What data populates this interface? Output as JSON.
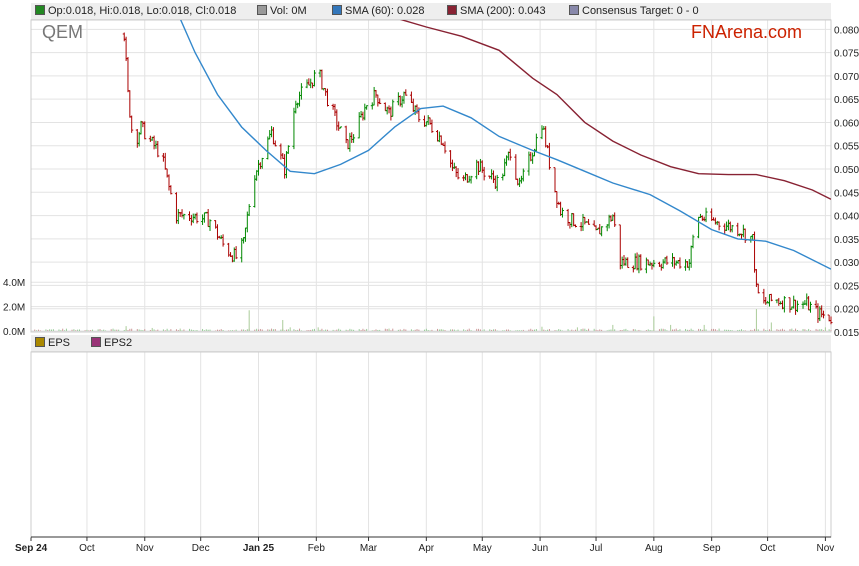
{
  "chart_data": {
    "type": "candlestick",
    "symbol": "QEM",
    "brand": "FNArena.com",
    "ohlc_legend": "Op:0.018, Hi:0.018, Lo:0.018, Cl:0.018",
    "volume_legend": "Vol: 0M",
    "sma60_legend": "SMA (60): 0.028",
    "sma200_legend": "SMA (200): 0.043",
    "consensus_legend": "Consensus Target: 0 - 0",
    "eps_legend": "EPS",
    "eps2_legend": "EPS2",
    "x_tick_labels": [
      "Sep 24",
      "Oct",
      "Nov",
      "Dec",
      "Jan 25",
      "Feb",
      "Mar",
      "Apr",
      "May",
      "Jun",
      "Jul",
      "Aug",
      "Sep",
      "Oct",
      "Nov"
    ],
    "x_tick_dates": [
      "2024-09-01",
      "2024-10-01",
      "2024-11-01",
      "2024-12-01",
      "2025-01-01",
      "2025-02-01",
      "2025-03-01",
      "2025-04-01",
      "2025-05-01",
      "2025-06-01",
      "2025-07-01",
      "2025-08-01",
      "2025-09-01",
      "2025-10-01",
      "2025-11-01"
    ],
    "x_range": [
      "2024-09-01",
      "2025-11-04"
    ],
    "price_axis": {
      "ylim": [
        0.015,
        0.082
      ],
      "ticks": [
        "0.080",
        "0.075",
        "0.070",
        "0.065",
        "0.060",
        "0.055",
        "0.050",
        "0.045",
        "0.040",
        "0.035",
        "0.030",
        "0.025",
        "0.020",
        "0.015"
      ]
    },
    "volume_axis": {
      "ylim": [
        0,
        5000000
      ],
      "ticks": [
        "4.0M",
        "2.0M",
        "0.0M"
      ]
    },
    "grid": true,
    "colors": {
      "up": "#008800",
      "down": "#aa0000",
      "sma60": "#3388cc",
      "sma200": "#882233",
      "ohlc_swatch": "#228822",
      "vol_swatch": "#999999",
      "sma60_swatch": "#3377bb",
      "sma200_swatch": "#882233",
      "consensus_swatch": "#8888aa",
      "eps_swatch": "#aa8800",
      "eps2_swatch": "#993377"
    },
    "sma60": [
      {
        "date": "2024-11-17",
        "value": 0.085
      },
      {
        "date": "2024-11-28",
        "value": 0.075
      },
      {
        "date": "2024-12-10",
        "value": 0.066
      },
      {
        "date": "2024-12-23",
        "value": 0.059
      },
      {
        "date": "2025-01-05",
        "value": 0.054
      },
      {
        "date": "2025-01-18",
        "value": 0.0495
      },
      {
        "date": "2025-01-31",
        "value": 0.049
      },
      {
        "date": "2025-02-14",
        "value": 0.051
      },
      {
        "date": "2025-03-01",
        "value": 0.054
      },
      {
        "date": "2025-03-15",
        "value": 0.059
      },
      {
        "date": "2025-03-29",
        "value": 0.063
      },
      {
        "date": "2025-04-10",
        "value": 0.0635
      },
      {
        "date": "2025-04-25",
        "value": 0.061
      },
      {
        "date": "2025-05-10",
        "value": 0.057
      },
      {
        "date": "2025-05-28",
        "value": 0.054
      },
      {
        "date": "2025-06-10",
        "value": 0.052
      },
      {
        "date": "2025-06-25",
        "value": 0.0495
      },
      {
        "date": "2025-07-10",
        "value": 0.047
      },
      {
        "date": "2025-07-30",
        "value": 0.0445
      },
      {
        "date": "2025-08-15",
        "value": 0.041
      },
      {
        "date": "2025-09-01",
        "value": 0.037
      },
      {
        "date": "2025-09-15",
        "value": 0.035
      },
      {
        "date": "2025-09-30",
        "value": 0.0345
      },
      {
        "date": "2025-10-15",
        "value": 0.0325
      },
      {
        "date": "2025-11-04",
        "value": 0.0285
      }
    ],
    "sma200": [
      {
        "date": "2025-03-15",
        "value": 0.0825
      },
      {
        "date": "2025-04-01",
        "value": 0.0805
      },
      {
        "date": "2025-04-20",
        "value": 0.0785
      },
      {
        "date": "2025-05-10",
        "value": 0.0755
      },
      {
        "date": "2025-05-28",
        "value": 0.0695
      },
      {
        "date": "2025-06-10",
        "value": 0.066
      },
      {
        "date": "2025-06-25",
        "value": 0.06
      },
      {
        "date": "2025-07-10",
        "value": 0.056
      },
      {
        "date": "2025-07-25",
        "value": 0.053
      },
      {
        "date": "2025-08-10",
        "value": 0.0505
      },
      {
        "date": "2025-08-25",
        "value": 0.049
      },
      {
        "date": "2025-09-10",
        "value": 0.0488
      },
      {
        "date": "2025-09-25",
        "value": 0.0488
      },
      {
        "date": "2025-10-10",
        "value": 0.0475
      },
      {
        "date": "2025-10-25",
        "value": 0.0455
      },
      {
        "date": "2025-11-04",
        "value": 0.0435
      }
    ],
    "price_waypoints": [
      {
        "date": "2024-10-21",
        "value": 0.079
      },
      {
        "date": "2024-10-23",
        "value": 0.066
      },
      {
        "date": "2024-10-26",
        "value": 0.055
      },
      {
        "date": "2024-10-30",
        "value": 0.059
      },
      {
        "date": "2024-11-04",
        "value": 0.056
      },
      {
        "date": "2024-11-10",
        "value": 0.053
      },
      {
        "date": "2024-11-14",
        "value": 0.046
      },
      {
        "date": "2024-11-18",
        "value": 0.04
      },
      {
        "date": "2024-11-26",
        "value": 0.04
      },
      {
        "date": "2024-12-06",
        "value": 0.039
      },
      {
        "date": "2024-12-14",
        "value": 0.033
      },
      {
        "date": "2024-12-20",
        "value": 0.031
      },
      {
        "date": "2024-12-24",
        "value": 0.034
      },
      {
        "date": "2024-12-29",
        "value": 0.048
      },
      {
        "date": "2025-01-08",
        "value": 0.058
      },
      {
        "date": "2025-01-15",
        "value": 0.05
      },
      {
        "date": "2025-01-21",
        "value": 0.065
      },
      {
        "date": "2025-01-28",
        "value": 0.068
      },
      {
        "date": "2025-02-02",
        "value": 0.071
      },
      {
        "date": "2025-02-06",
        "value": 0.066
      },
      {
        "date": "2025-02-12",
        "value": 0.06
      },
      {
        "date": "2025-02-17",
        "value": 0.055
      },
      {
        "date": "2025-02-22",
        "value": 0.058
      },
      {
        "date": "2025-02-28",
        "value": 0.064
      },
      {
        "date": "2025-03-05",
        "value": 0.066
      },
      {
        "date": "2025-03-12",
        "value": 0.062
      },
      {
        "date": "2025-03-20",
        "value": 0.066
      },
      {
        "date": "2025-03-28",
        "value": 0.061
      },
      {
        "date": "2025-04-02",
        "value": 0.06
      },
      {
        "date": "2025-04-10",
        "value": 0.056
      },
      {
        "date": "2025-04-15",
        "value": 0.05
      },
      {
        "date": "2025-04-20",
        "value": 0.047
      },
      {
        "date": "2025-04-28",
        "value": 0.051
      },
      {
        "date": "2025-05-03",
        "value": 0.049
      },
      {
        "date": "2025-05-10",
        "value": 0.047
      },
      {
        "date": "2025-05-16",
        "value": 0.054
      },
      {
        "date": "2025-05-21",
        "value": 0.046
      },
      {
        "date": "2025-05-28",
        "value": 0.054
      },
      {
        "date": "2025-06-02",
        "value": 0.06
      },
      {
        "date": "2025-06-08",
        "value": 0.047
      },
      {
        "date": "2025-06-12",
        "value": 0.041
      },
      {
        "date": "2025-06-18",
        "value": 0.039
      },
      {
        "date": "2025-06-25",
        "value": 0.038
      },
      {
        "date": "2025-07-01",
        "value": 0.036
      },
      {
        "date": "2025-07-10",
        "value": 0.04
      },
      {
        "date": "2025-07-14",
        "value": 0.03
      },
      {
        "date": "2025-08-20",
        "value": 0.03
      },
      {
        "date": "2025-08-24",
        "value": 0.04
      },
      {
        "date": "2025-08-31",
        "value": 0.039
      },
      {
        "date": "2025-09-08",
        "value": 0.038
      },
      {
        "date": "2025-09-16",
        "value": 0.037
      },
      {
        "date": "2025-09-23",
        "value": 0.035
      },
      {
        "date": "2025-09-25",
        "value": 0.024
      },
      {
        "date": "2025-09-28",
        "value": 0.021
      },
      {
        "date": "2025-10-05",
        "value": 0.022
      },
      {
        "date": "2025-10-15",
        "value": 0.021
      },
      {
        "date": "2025-10-22",
        "value": 0.021
      },
      {
        "date": "2025-10-28",
        "value": 0.019
      },
      {
        "date": "2025-11-04",
        "value": 0.018
      }
    ],
    "volume_spikes": [
      {
        "date": "2024-10-22",
        "value": 400000
      },
      {
        "date": "2024-11-05",
        "value": 250000
      },
      {
        "date": "2024-11-20",
        "value": 200000
      },
      {
        "date": "2024-12-27",
        "value": 1700000
      },
      {
        "date": "2025-01-14",
        "value": 900000
      },
      {
        "date": "2025-01-18",
        "value": 300000
      },
      {
        "date": "2025-02-02",
        "value": 300000
      },
      {
        "date": "2025-03-12",
        "value": 200000
      },
      {
        "date": "2025-04-09",
        "value": 150000
      },
      {
        "date": "2025-06-02",
        "value": 350000
      },
      {
        "date": "2025-06-21",
        "value": 300000
      },
      {
        "date": "2025-07-10",
        "value": 500000
      },
      {
        "date": "2025-08-01",
        "value": 1200000
      },
      {
        "date": "2025-08-10",
        "value": 500000
      },
      {
        "date": "2025-08-28",
        "value": 500000
      },
      {
        "date": "2025-09-25",
        "value": 1800000
      },
      {
        "date": "2025-10-03",
        "value": 700000
      },
      {
        "date": "2025-11-01",
        "value": 300000
      }
    ]
  }
}
